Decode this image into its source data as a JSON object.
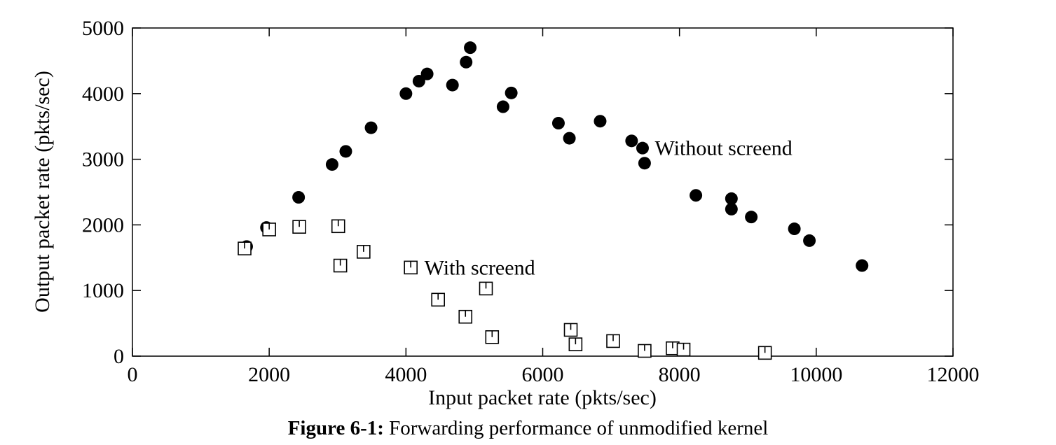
{
  "chart_data": {
    "type": "scatter",
    "title": "",
    "xlabel": "Input packet rate (pkts/sec)",
    "ylabel": "Output packet rate (pkts/sec)",
    "xlim": [
      0,
      12000
    ],
    "ylim": [
      0,
      5000
    ],
    "x_ticks": [
      0,
      2000,
      4000,
      6000,
      8000,
      10000,
      12000
    ],
    "y_ticks": [
      0,
      1000,
      2000,
      3000,
      4000,
      5000
    ],
    "x_tick_labels": [
      "0",
      "2000",
      "4000",
      "6000",
      "8000",
      "10000",
      "12000"
    ],
    "y_tick_labels": [
      "0",
      "1000",
      "2000",
      "3000",
      "4000",
      "5000"
    ],
    "grid": false,
    "legend": "none",
    "series": [
      {
        "label": "Without screend",
        "marker": "filled-circle",
        "color": "#000000",
        "points": [
          {
            "x": 1670,
            "y": 1670
          },
          {
            "x": 1960,
            "y": 1960
          },
          {
            "x": 2430,
            "y": 2420
          },
          {
            "x": 2920,
            "y": 2920
          },
          {
            "x": 3120,
            "y": 3120
          },
          {
            "x": 3490,
            "y": 3480
          },
          {
            "x": 4000,
            "y": 4000
          },
          {
            "x": 4190,
            "y": 4190
          },
          {
            "x": 4310,
            "y": 4300
          },
          {
            "x": 4680,
            "y": 4130
          },
          {
            "x": 4880,
            "y": 4480
          },
          {
            "x": 4940,
            "y": 4700
          },
          {
            "x": 5420,
            "y": 3800
          },
          {
            "x": 5540,
            "y": 4010
          },
          {
            "x": 6230,
            "y": 3550
          },
          {
            "x": 6390,
            "y": 3320
          },
          {
            "x": 6840,
            "y": 3580
          },
          {
            "x": 7300,
            "y": 3280
          },
          {
            "x": 7460,
            "y": 3170
          },
          {
            "x": 7490,
            "y": 2940
          },
          {
            "x": 8240,
            "y": 2450
          },
          {
            "x": 8760,
            "y": 2400
          },
          {
            "x": 8760,
            "y": 2240
          },
          {
            "x": 9050,
            "y": 2120
          },
          {
            "x": 9680,
            "y": 1940
          },
          {
            "x": 9900,
            "y": 1760
          },
          {
            "x": 10670,
            "y": 1380
          }
        ]
      },
      {
        "label": "With screend",
        "marker": "open-square",
        "color": "#000000",
        "points": [
          {
            "x": 1640,
            "y": 1640
          },
          {
            "x": 2000,
            "y": 1930
          },
          {
            "x": 2440,
            "y": 1970
          },
          {
            "x": 3010,
            "y": 1980
          },
          {
            "x": 3040,
            "y": 1380
          },
          {
            "x": 3380,
            "y": 1590
          },
          {
            "x": 4070,
            "y": 1350
          },
          {
            "x": 4470,
            "y": 860
          },
          {
            "x": 4870,
            "y": 600
          },
          {
            "x": 5170,
            "y": 1030
          },
          {
            "x": 5260,
            "y": 290
          },
          {
            "x": 6410,
            "y": 400
          },
          {
            "x": 6480,
            "y": 180
          },
          {
            "x": 7030,
            "y": 230
          },
          {
            "x": 7490,
            "y": 80
          },
          {
            "x": 7900,
            "y": 120
          },
          {
            "x": 8060,
            "y": 100
          },
          {
            "x": 9250,
            "y": 50
          }
        ]
      }
    ],
    "annotations": [
      {
        "text": "Without screend",
        "x": 7640,
        "y": 3170
      },
      {
        "text": "With screend",
        "x": 4270,
        "y": 1350
      }
    ]
  },
  "caption": {
    "label": "Figure 6-1:",
    "text": "Forwarding performance of unmodified kernel"
  }
}
